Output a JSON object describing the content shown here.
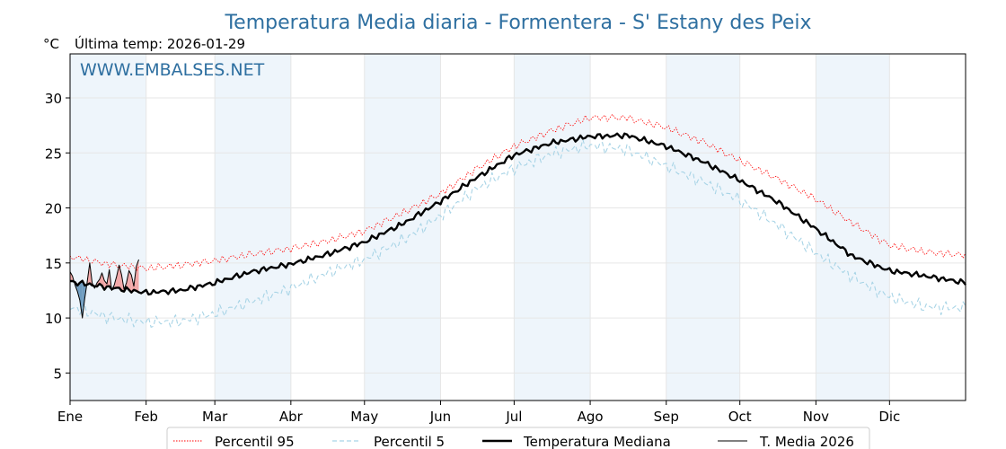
{
  "chart_data": {
    "type": "line",
    "title": "Temperatura Media diaria - Formentera - S' Estany des Peix",
    "subtitle": "Última temp: 2026-01-29",
    "ylabel": "°C",
    "watermark": "WWW.EMBALSES.NET",
    "ylim": [
      2.5,
      34
    ],
    "yticks": [
      5,
      10,
      15,
      20,
      25,
      30
    ],
    "xlim": [
      1,
      366
    ],
    "month_labels": [
      "Ene",
      "Feb",
      "Mar",
      "Abr",
      "May",
      "Jun",
      "Jul",
      "Ago",
      "Sep",
      "Oct",
      "Nov",
      "Dic"
    ],
    "month_start_days": [
      1,
      32,
      60,
      91,
      121,
      152,
      182,
      213,
      244,
      274,
      305,
      335
    ],
    "shaded_month_indices": [
      0,
      2,
      4,
      6,
      8,
      10
    ],
    "grid": true,
    "legend_position": "bottom",
    "series": [
      {
        "name": "Percentil 95",
        "color": "#ff0000",
        "style": "dotted",
        "x": [
          1,
          16,
          32,
          46,
          60,
          75,
          91,
          106,
          121,
          137,
          152,
          167,
          182,
          197,
          213,
          228,
          244,
          259,
          274,
          289,
          305,
          320,
          335,
          350,
          366
        ],
        "values": [
          15.6,
          14.9,
          14.5,
          14.8,
          15.2,
          15.8,
          16.3,
          17.0,
          17.9,
          19.6,
          21.3,
          23.6,
          25.6,
          27.0,
          28.2,
          28.2,
          27.3,
          26.0,
          24.3,
          22.7,
          20.8,
          18.6,
          16.6,
          16.0,
          15.7
        ]
      },
      {
        "name": "Percentil 5",
        "color": "#a8d4e6",
        "style": "dashed",
        "x": [
          1,
          16,
          32,
          46,
          60,
          75,
          91,
          106,
          121,
          137,
          152,
          167,
          182,
          197,
          213,
          228,
          244,
          259,
          274,
          289,
          305,
          320,
          335,
          350,
          366
        ],
        "values": [
          11.0,
          10.1,
          9.6,
          9.7,
          10.4,
          11.5,
          12.7,
          14.1,
          15.3,
          17.1,
          19.3,
          21.8,
          23.6,
          24.9,
          25.7,
          25.3,
          23.8,
          22.4,
          20.7,
          18.5,
          15.9,
          13.7,
          11.9,
          11.0,
          10.9
        ]
      },
      {
        "name": "Temperatura Mediana",
        "color": "#000000",
        "style": "solid-thick",
        "x": [
          1,
          16,
          32,
          46,
          60,
          75,
          91,
          106,
          121,
          137,
          152,
          167,
          182,
          197,
          213,
          228,
          244,
          259,
          274,
          289,
          305,
          320,
          335,
          350,
          366
        ],
        "values": [
          13.3,
          12.8,
          12.3,
          12.5,
          13.2,
          14.2,
          14.9,
          15.8,
          16.9,
          18.6,
          20.6,
          22.8,
          24.8,
          25.9,
          26.5,
          26.6,
          25.6,
          24.2,
          22.5,
          20.6,
          18.1,
          15.6,
          14.3,
          13.8,
          13.2
        ]
      },
      {
        "name": "T. Media 2026",
        "color": "#000000",
        "style": "solid-thin",
        "x": [
          1,
          2,
          3,
          4,
          5,
          6,
          7,
          8,
          9,
          10,
          11,
          12,
          13,
          14,
          15,
          16,
          17,
          18,
          19,
          20,
          21,
          22,
          23,
          24,
          25,
          26,
          27,
          28,
          29
        ],
        "values": [
          14.2,
          13.8,
          13.0,
          12.4,
          11.6,
          10.0,
          11.8,
          13.3,
          15.0,
          13.2,
          12.7,
          13.2,
          13.5,
          14.1,
          13.4,
          13.1,
          14.4,
          12.5,
          13.0,
          13.8,
          14.8,
          13.9,
          12.6,
          13.2,
          14.3,
          13.9,
          12.9,
          14.7,
          15.3
        ]
      }
    ]
  },
  "legend": {
    "items": [
      {
        "label": "Percentil 95",
        "color": "#ff0000",
        "style": "dotted"
      },
      {
        "label": "Percentil 5",
        "color": "#a8d4e6",
        "style": "dashed"
      },
      {
        "label": "Temperatura Mediana",
        "color": "#000000",
        "style": "thick"
      },
      {
        "label": "T. Media 2026",
        "color": "#000000",
        "style": "thin"
      }
    ]
  },
  "colors": {
    "above_fill": "#f2a7a7",
    "below_fill": "#6d9bbf",
    "month_shade": "#eef5fb",
    "title": "#2e6fa0"
  }
}
